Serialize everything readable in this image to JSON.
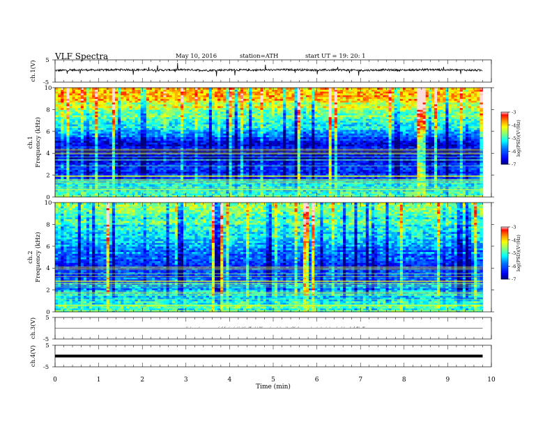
{
  "header": {
    "title": "VLF  Spectra",
    "date": "May 10, 2016",
    "station": "station=ATH",
    "start": "start  UT  =    19: 20: 1"
  },
  "chart_data": [
    {
      "id": "ch1-voltage",
      "type": "line",
      "ylabel": "ch.1(V)",
      "ylim": [
        -5,
        5
      ],
      "yticks": [
        "5",
        "-5"
      ],
      "xlim": [
        0,
        10
      ],
      "x": [
        0,
        0.5,
        1,
        1.5,
        2,
        2.5,
        3,
        3.5,
        4,
        4.5,
        5,
        5.5,
        6,
        6.5,
        7,
        7.5,
        8,
        8.5,
        9,
        9.5,
        9.8
      ],
      "y": [
        0.2,
        0.5,
        0.4,
        0.6,
        0.5,
        0.4,
        0.6,
        0.3,
        0.5,
        0.4,
        0.5,
        0.6,
        0.4,
        0.5,
        0.3,
        0.5,
        0.4,
        0.6,
        0.5,
        0.4,
        0.3
      ]
    },
    {
      "id": "ch1-spectrogram",
      "type": "heatmap",
      "ylabel_channel": "ch.1",
      "ylabel": "Frequency  (kHz)",
      "ylim": [
        0,
        10
      ],
      "yticks": [
        "0",
        "2",
        "4",
        "6",
        "8",
        "10"
      ],
      "xlim": [
        0,
        10
      ],
      "data_end_min": 9.8,
      "colorbar": {
        "label": "log(PSD)(V²/Hz)",
        "ticks": [
          "-3",
          "-4",
          "-5",
          "-6",
          "-7"
        ],
        "range": [
          -7,
          -3
        ]
      },
      "band_profile_khz": [
        [
          0,
          -5.0
        ],
        [
          1,
          -5.2
        ],
        [
          2,
          -6.2
        ],
        [
          3,
          -6.4
        ],
        [
          4,
          -6.6
        ],
        [
          5,
          -6.5
        ],
        [
          6,
          -5.6
        ],
        [
          7,
          -5.0
        ],
        [
          8,
          -4.5
        ],
        [
          9,
          -4.0
        ],
        [
          10,
          -3.8
        ]
      ]
    },
    {
      "id": "ch2-spectrogram",
      "type": "heatmap",
      "ylabel_channel": "ch.2",
      "ylabel": "Frequency  (kHz)",
      "ylim": [
        0,
        10
      ],
      "yticks": [
        "0",
        "2",
        "4",
        "6",
        "8",
        "10"
      ],
      "xlim": [
        0,
        10
      ],
      "data_end_min": 9.8,
      "colorbar": {
        "label": "log(PSD)(V²/Hz)",
        "ticks": [
          "-3",
          "-4",
          "-5",
          "-6",
          "-7"
        ],
        "range": [
          -7,
          -3
        ]
      },
      "band_profile_khz": [
        [
          0,
          -4.8
        ],
        [
          1,
          -5.0
        ],
        [
          2,
          -5.6
        ],
        [
          3,
          -6.0
        ],
        [
          4,
          -6.1
        ],
        [
          5,
          -6.0
        ],
        [
          6,
          -5.6
        ],
        [
          7,
          -5.3
        ],
        [
          8,
          -5.0
        ],
        [
          9,
          -4.8
        ],
        [
          10,
          -4.7
        ]
      ]
    },
    {
      "id": "ch3-voltage",
      "type": "line",
      "ylabel": "ch.3(V)",
      "ylim": [
        -5,
        5
      ],
      "yticks": [
        "5",
        "-5"
      ],
      "xlim": [
        0,
        10
      ],
      "x": [
        0,
        9.8
      ],
      "y": [
        0,
        0
      ]
    },
    {
      "id": "ch4-voltage",
      "type": "line",
      "ylabel": "ch.4(V)",
      "ylim": [
        -5,
        5
      ],
      "yticks": [
        "5",
        "-5"
      ],
      "xlim": [
        0,
        10
      ],
      "x": [
        0,
        9.8
      ],
      "y": [
        0,
        0
      ]
    }
  ],
  "xaxis": {
    "label": "Time  (min)",
    "ticks": [
      "0",
      "1",
      "2",
      "3",
      "4",
      "5",
      "6",
      "7",
      "8",
      "9",
      "10"
    ]
  },
  "colors": {
    "colormap": [
      "#00007f",
      "#0000ff",
      "#007fff",
      "#00ffff",
      "#7fff7f",
      "#ffff00",
      "#ff7f00",
      "#ff0000",
      "#ffffff"
    ],
    "line": "#000000",
    "axes": "#000000"
  }
}
